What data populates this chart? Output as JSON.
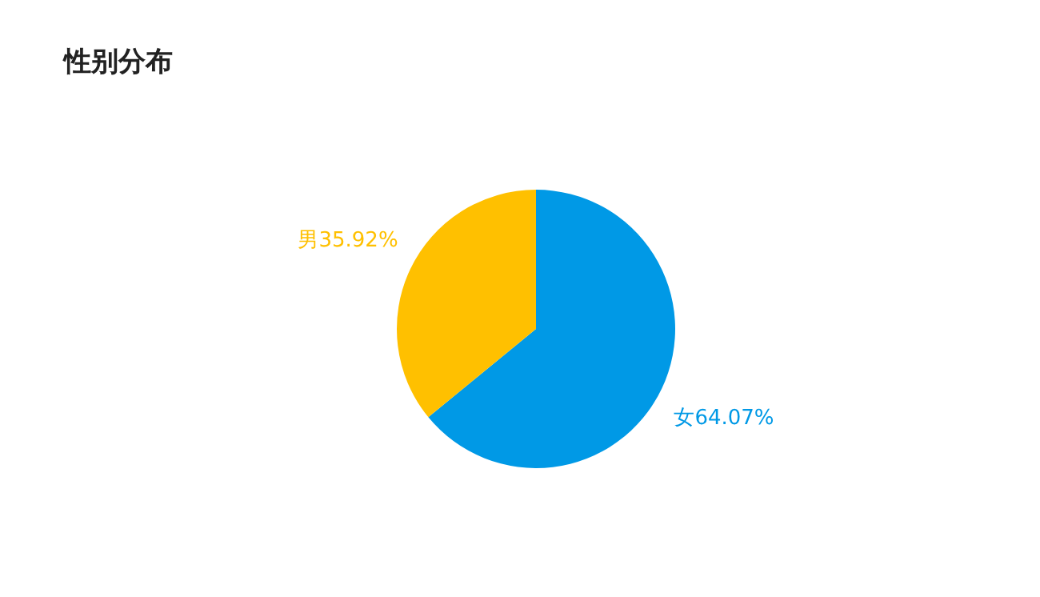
{
  "chart_data": {
    "type": "pie",
    "title": "性别分布",
    "categories": [
      "女",
      "男"
    ],
    "values": [
      64.07,
      35.92
    ],
    "colors": [
      "#0099e6",
      "#ffc000"
    ],
    "value_labels": [
      "64.07%",
      "35.92%"
    ],
    "legend": false
  }
}
